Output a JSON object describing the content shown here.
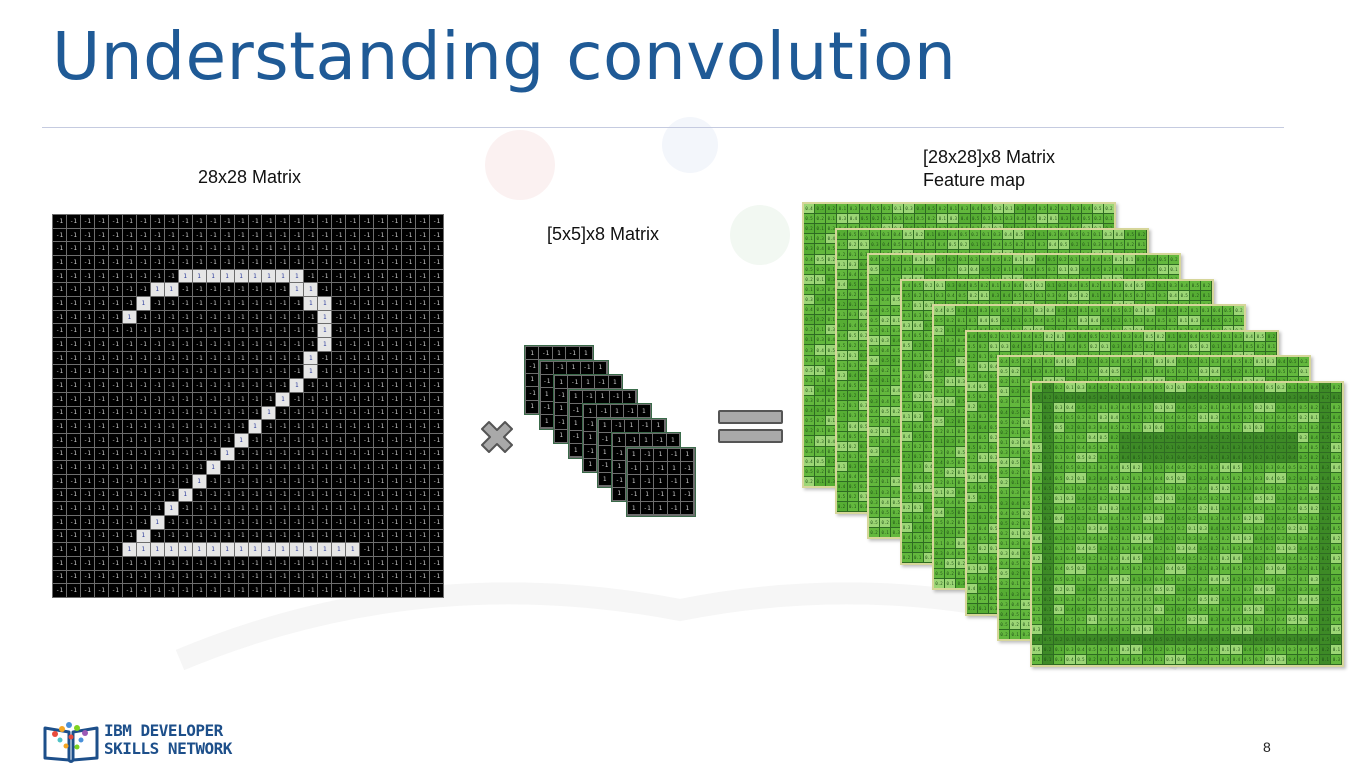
{
  "slide": {
    "title": "Understanding convolution",
    "page_number": "8"
  },
  "input_matrix": {
    "label": "28x28 Matrix",
    "size": 28,
    "background_value": "-1",
    "foreground_value": "1",
    "colors": {
      "background": "#000000",
      "foreground": "#e6e6e6",
      "grid": "#6d6d6d"
    },
    "digit_pixels_by_row": [
      [],
      [],
      [],
      [],
      [
        [
          9,
          18
        ]
      ],
      [
        [
          7,
          9
        ],
        [
          17,
          19
        ]
      ],
      [
        [
          6,
          7
        ],
        [
          18,
          20
        ]
      ],
      [
        [
          5,
          6
        ],
        [
          19,
          20
        ]
      ],
      [
        [
          19,
          20
        ]
      ],
      [
        [
          19,
          20
        ]
      ],
      [
        [
          18,
          19
        ]
      ],
      [
        [
          18,
          19
        ]
      ],
      [
        [
          17,
          18
        ]
      ],
      [
        [
          16,
          17
        ]
      ],
      [
        [
          15,
          16
        ]
      ],
      [
        [
          14,
          15
        ]
      ],
      [
        [
          13,
          14
        ]
      ],
      [
        [
          12,
          13
        ]
      ],
      [
        [
          11,
          12
        ]
      ],
      [
        [
          10,
          11
        ]
      ],
      [
        [
          9,
          10
        ]
      ],
      [
        [
          8,
          9
        ]
      ],
      [
        [
          7,
          8
        ]
      ],
      [
        [
          6,
          7
        ]
      ],
      [
        [
          5,
          22
        ]
      ],
      [],
      [],
      []
    ]
  },
  "kernel": {
    "label": "[5x5]x8 Matrix",
    "size": 5,
    "count": 8,
    "sample_values": [
      "1",
      "-1"
    ]
  },
  "feature_map": {
    "label_line1": "[28x28]x8 Matrix",
    "label_line2": "Feature map",
    "size": 28,
    "count": 8,
    "sample_values": [
      "0.4",
      "0.5",
      "0.2",
      "0.1",
      "0.3"
    ],
    "colors": {
      "light": "#9cd675",
      "mid": "#63b83d",
      "dark": "#3d8a26",
      "grid": "#2e6b22",
      "border": "#d6d69a"
    }
  },
  "operators": {
    "times_icon": "multiply-icon",
    "equals_icon": "equals-icon"
  },
  "footer": {
    "logo_line1": "IBM DEVELOPER",
    "logo_line2": "SKILLS NETWORK",
    "logo_icon": "book-network-icon"
  }
}
